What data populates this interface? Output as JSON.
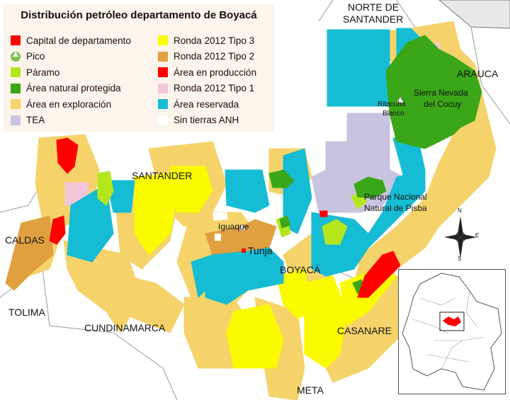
{
  "title": "Distribución petróleo departamento de Boyacá",
  "colors": {
    "capital": "#ff0000",
    "pico": "#7fbf4f",
    "paramo": "#b5e61d",
    "protected": "#3aa618",
    "exploration": "#f5d36a",
    "tea": "#c8c3e0",
    "ronda_tipo3": "#fafa00",
    "ronda_tipo2": "#e0a040",
    "production": "#ff0000",
    "ronda_tipo1": "#f5c6d8",
    "reserved": "#16bcd4",
    "no_anh": "#ffffff",
    "water_gray": "#e8e8e8"
  },
  "legend": [
    {
      "label": "Capital de departamento",
      "color": "#ff0000",
      "icon": "square"
    },
    {
      "label": "Pico",
      "color": "#7fbf4f",
      "icon": "mountain-icon"
    },
    {
      "label": "Páramo",
      "color": "#b5e61d",
      "icon": "square"
    },
    {
      "label": "Área natural protegida",
      "color": "#3aa618",
      "icon": "square"
    },
    {
      "label": "Área en exploración",
      "color": "#f5d36a",
      "icon": "square"
    },
    {
      "label": "TEA",
      "color": "#c8c3e0",
      "icon": "square"
    },
    {
      "label": "Ronda 2012 Tipo 3",
      "color": "#fafa00",
      "icon": "square"
    },
    {
      "label": "Ronda 2012 Tipo 2",
      "color": "#e0a040",
      "icon": "square"
    },
    {
      "label": "Área en producción",
      "color": "#ff0000",
      "icon": "square"
    },
    {
      "label": "Ronda 2012 Tipo 1",
      "color": "#f5c6d8",
      "icon": "square"
    },
    {
      "label": "Área reservada",
      "color": "#16bcd4",
      "icon": "square"
    },
    {
      "label": "Sin tierras ANH",
      "color": "#ffffff",
      "icon": "square"
    }
  ],
  "labels": {
    "norte_de_santander_1": "NORTE DE",
    "norte_de_santander_2": "SANTANDER",
    "arauca": "ARAUCA",
    "santander": "SANTANDER",
    "caldas": "CALDAS",
    "tolima": "TOLIMA",
    "cundinamarca": "CUNDINAMARCA",
    "boyaca": "BOYACÁ",
    "casanare": "CASANARE",
    "meta": "META",
    "tunja": "Tunja",
    "iguaque": "Iguaque",
    "sierra_nevada_1": "Sierra Nevada",
    "sierra_nevada_2": "del Cocuy",
    "ritacuba_1": "Ritacuba",
    "ritacuba_2": "Blanco",
    "pisba_1": "Parque Nacional",
    "pisba_2": "Natural de Pisba"
  },
  "compass": {
    "n": "N",
    "s": "S",
    "e": "E",
    "w": "W"
  }
}
